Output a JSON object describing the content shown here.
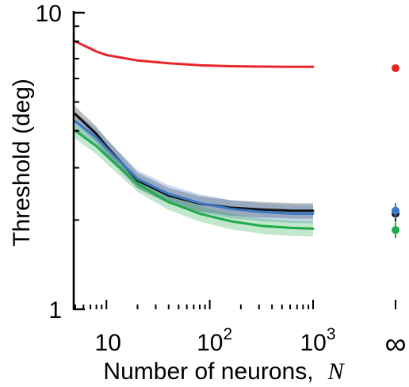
{
  "chart_data": {
    "type": "line",
    "xscale": "log",
    "yscale": "log",
    "xlim": [
      5,
      1000
    ],
    "ylim": [
      1,
      10
    ],
    "xlabel": "Number of neurons,",
    "xlabel_var": "N",
    "ylabel": "Threshold (deg)",
    "x_tick_labels": [
      {
        "value": 10,
        "base": "10",
        "sup": ""
      },
      {
        "value": 100,
        "base": "10",
        "sup": "2"
      },
      {
        "value": 1000,
        "base": "10",
        "sup": "3"
      }
    ],
    "x_infinity_label": "∞",
    "y_tick_labels": [
      {
        "value": 10,
        "label": "10"
      },
      {
        "value": 1,
        "label": "1"
      }
    ],
    "x": [
      5,
      8,
      10,
      20,
      40,
      80,
      160,
      320,
      640,
      1000
    ],
    "series": [
      {
        "color": "#e8262a",
        "values": [
          8.0,
          7.4,
          7.2,
          6.9,
          6.75,
          6.65,
          6.6,
          6.58,
          6.57,
          6.57
        ],
        "infinity_value": 6.5
      },
      {
        "color": "#111111",
        "values": [
          4.55,
          3.9,
          3.55,
          2.72,
          2.42,
          2.27,
          2.2,
          2.17,
          2.15,
          2.15
        ],
        "band": 0.06,
        "infinity_value": 2.1
      },
      {
        "color": "#3c78c4",
        "values": [
          4.3,
          3.8,
          3.5,
          2.75,
          2.45,
          2.28,
          2.18,
          2.13,
          2.1,
          2.1
        ],
        "band": 0.07,
        "infinity_value": 2.15
      },
      {
        "color": "#1faa4b",
        "values": [
          4.0,
          3.55,
          3.3,
          2.65,
          2.3,
          2.1,
          1.98,
          1.91,
          1.88,
          1.87
        ],
        "band": 0.06,
        "infinity_value": 1.85
      }
    ],
    "grid": false,
    "legend": "none"
  }
}
